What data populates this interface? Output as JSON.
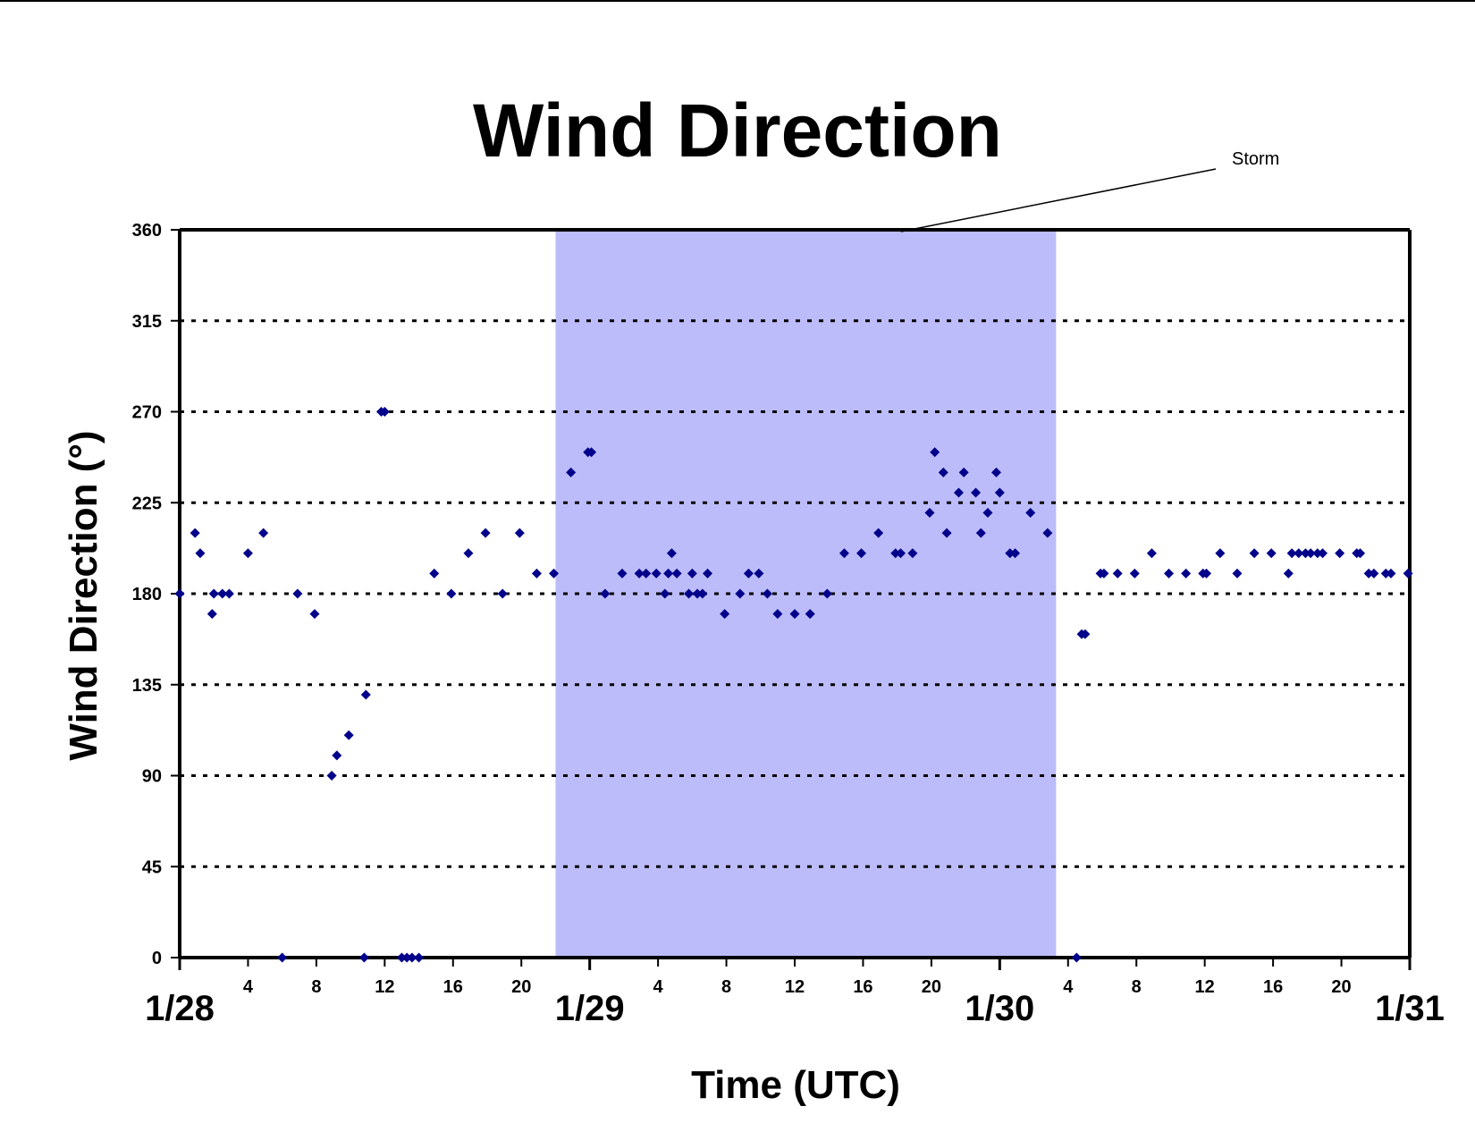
{
  "chart_data": {
    "type": "scatter",
    "title": "Wind Direction",
    "xlabel": "Time (UTC)",
    "ylabel": "Wind Direction (°)",
    "ylim": [
      0,
      360
    ],
    "yticks": [
      0,
      45,
      90,
      135,
      180,
      225,
      270,
      315,
      360
    ],
    "xlim": [
      0,
      72
    ],
    "hour_ticks": [
      {
        "x": 4,
        "label": "4"
      },
      {
        "x": 8,
        "label": "8"
      },
      {
        "x": 12,
        "label": "12"
      },
      {
        "x": 16,
        "label": "16"
      },
      {
        "x": 20,
        "label": "20"
      },
      {
        "x": 28,
        "label": "4"
      },
      {
        "x": 32,
        "label": "8"
      },
      {
        "x": 36,
        "label": "12"
      },
      {
        "x": 40,
        "label": "16"
      },
      {
        "x": 44,
        "label": "20"
      },
      {
        "x": 52,
        "label": "4"
      },
      {
        "x": 56,
        "label": "8"
      },
      {
        "x": 60,
        "label": "12"
      },
      {
        "x": 64,
        "label": "16"
      },
      {
        "x": 68,
        "label": "20"
      }
    ],
    "day_labels": [
      {
        "x": 0,
        "label": "1/28"
      },
      {
        "x": 24,
        "label": "1/29"
      },
      {
        "x": 48,
        "label": "1/30"
      },
      {
        "x": 72,
        "label": "1/31"
      }
    ],
    "grid": "horizontal-dotted",
    "marker_color": "#00008B",
    "shaded_region": {
      "x_start": 22,
      "x_end": 51.3,
      "color": "#BCBCFA",
      "label": "Storm"
    },
    "points": [
      [
        0,
        180
      ],
      [
        0.9,
        210
      ],
      [
        1.2,
        200
      ],
      [
        1.9,
        170
      ],
      [
        2,
        180
      ],
      [
        2.5,
        180
      ],
      [
        2.9,
        180
      ],
      [
        4,
        200
      ],
      [
        4.9,
        210
      ],
      [
        6,
        0
      ],
      [
        6.9,
        180
      ],
      [
        7.9,
        170
      ],
      [
        8.9,
        90
      ],
      [
        9.2,
        100
      ],
      [
        9.9,
        110
      ],
      [
        10.8,
        0
      ],
      [
        10.9,
        130
      ],
      [
        11.8,
        270
      ],
      [
        12,
        270
      ],
      [
        13,
        0
      ],
      [
        13.3,
        0
      ],
      [
        13.6,
        0
      ],
      [
        14,
        0
      ],
      [
        14.9,
        190
      ],
      [
        15.9,
        180
      ],
      [
        16.9,
        200
      ],
      [
        17.9,
        210
      ],
      [
        18.9,
        180
      ],
      [
        19.9,
        210
      ],
      [
        20.9,
        190
      ],
      [
        21.9,
        190
      ],
      [
        22.9,
        240
      ],
      [
        23.9,
        250
      ],
      [
        24.1,
        250
      ],
      [
        24.9,
        180
      ],
      [
        25.9,
        190
      ],
      [
        26.9,
        190
      ],
      [
        27.3,
        190
      ],
      [
        27.9,
        190
      ],
      [
        28.4,
        180
      ],
      [
        28.6,
        190
      ],
      [
        28.8,
        200
      ],
      [
        29.1,
        190
      ],
      [
        29.8,
        180
      ],
      [
        30,
        190
      ],
      [
        30.3,
        180
      ],
      [
        30.6,
        180
      ],
      [
        30.9,
        190
      ],
      [
        31.9,
        170
      ],
      [
        32.8,
        180
      ],
      [
        33.3,
        190
      ],
      [
        33.9,
        190
      ],
      [
        34.4,
        180
      ],
      [
        35,
        170
      ],
      [
        36,
        170
      ],
      [
        36.9,
        170
      ],
      [
        37.9,
        180
      ],
      [
        38.9,
        200
      ],
      [
        39.9,
        200
      ],
      [
        40.9,
        210
      ],
      [
        41.9,
        200
      ],
      [
        42.2,
        200
      ],
      [
        42.9,
        200
      ],
      [
        43.9,
        220
      ],
      [
        44.2,
        250
      ],
      [
        44.7,
        240
      ],
      [
        44.9,
        210
      ],
      [
        45.6,
        230
      ],
      [
        45.9,
        240
      ],
      [
        46.6,
        230
      ],
      [
        46.9,
        210
      ],
      [
        47.3,
        220
      ],
      [
        47.8,
        240
      ],
      [
        48,
        230
      ],
      [
        48.6,
        200
      ],
      [
        48.9,
        200
      ],
      [
        49.8,
        220
      ],
      [
        50.8,
        210
      ],
      [
        52.5,
        0
      ],
      [
        52.8,
        160
      ],
      [
        53,
        160
      ],
      [
        53.9,
        190
      ],
      [
        54.1,
        190
      ],
      [
        54.9,
        190
      ],
      [
        55.9,
        190
      ],
      [
        56.9,
        200
      ],
      [
        57.9,
        190
      ],
      [
        58.9,
        190
      ],
      [
        59.9,
        190
      ],
      [
        60.1,
        190
      ],
      [
        60.9,
        200
      ],
      [
        61.9,
        190
      ],
      [
        62.9,
        200
      ],
      [
        63.9,
        200
      ],
      [
        64.9,
        190
      ],
      [
        65.1,
        200
      ],
      [
        65.5,
        200
      ],
      [
        65.9,
        200
      ],
      [
        66.2,
        200
      ],
      [
        66.6,
        200
      ],
      [
        66.9,
        200
      ],
      [
        67.9,
        200
      ],
      [
        68.9,
        200
      ],
      [
        69.1,
        200
      ],
      [
        69.6,
        190
      ],
      [
        69.9,
        190
      ],
      [
        70.6,
        190
      ],
      [
        70.9,
        190
      ],
      [
        71.9,
        190
      ]
    ]
  }
}
